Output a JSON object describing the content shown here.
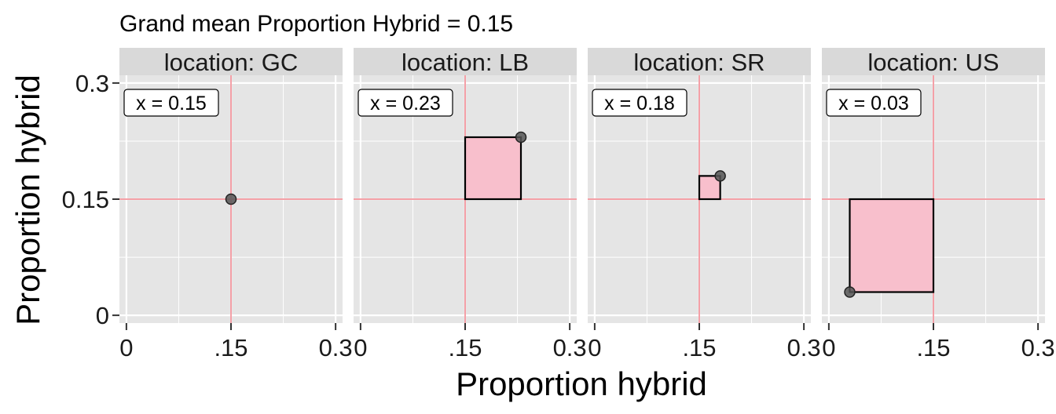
{
  "chart_data": {
    "type": "scatter",
    "title": "Grand mean Proportion Hybrid = 0.15",
    "xlabel": "Proportion hybrid",
    "ylabel": "Proportion hybrid",
    "grand_mean": 0.15,
    "xlim": [
      -0.01,
      0.31
    ],
    "ylim": [
      -0.01,
      0.31
    ],
    "x_ticks": [
      {
        "value": 0,
        "label": "0"
      },
      {
        "value": 0.15,
        "label": ".15"
      },
      {
        "value": 0.3,
        "label": "0.3"
      }
    ],
    "y_ticks": [
      {
        "value": 0,
        "label": "0"
      },
      {
        "value": 0.15,
        "label": "0.15"
      },
      {
        "value": 0.3,
        "label": "0.3"
      }
    ],
    "grid": true,
    "colors": {
      "panel_bg": "#e5e5e5",
      "strip_bg": "#d9d9d9",
      "grid": "#ffffff",
      "reference_line": "#f4a0a7",
      "square_fill": "#f8bfcc",
      "point": "#555555"
    },
    "facets": [
      {
        "strip": "location: GC",
        "x": 0.15,
        "y": 0.15,
        "label": "x = 0.15"
      },
      {
        "strip": "location: LB",
        "x": 0.23,
        "y": 0.23,
        "label": "x = 0.23"
      },
      {
        "strip": "location: SR",
        "x": 0.18,
        "y": 0.18,
        "label": "x = 0.18"
      },
      {
        "strip": "location: US",
        "x": 0.03,
        "y": 0.03,
        "label": "x = 0.03"
      }
    ]
  }
}
